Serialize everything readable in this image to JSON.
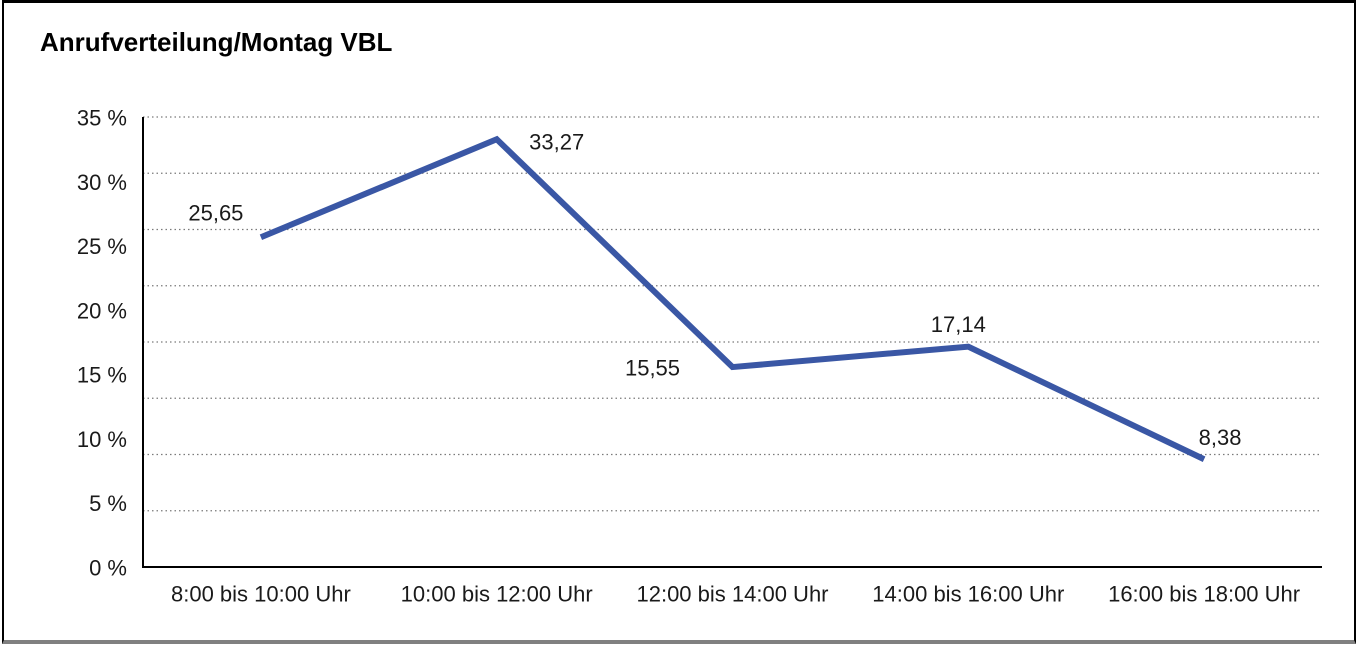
{
  "chart_data": {
    "type": "line",
    "title": "Anrufverteilung/Montag VBL",
    "categories": [
      "8:00 bis 10:00 Uhr",
      "10:00 bis 12:00 Uhr",
      "12:00 bis 14:00 Uhr",
      "14:00 bis 16:00 Uhr",
      "16:00 bis 18:00 Uhr"
    ],
    "values": [
      25.65,
      33.27,
      15.55,
      17.14,
      8.38
    ],
    "value_labels": [
      "25,65",
      "33,27",
      "15,55",
      "17,14",
      "8,38"
    ],
    "ytick_labels": [
      "35 %",
      "30 %",
      "25 %",
      "20 %",
      "15 %",
      "10 %",
      "5 %",
      "0 %"
    ],
    "ylim": [
      0,
      35
    ],
    "ylabel": "",
    "xlabel": "",
    "grid": "horizontal-dotted",
    "legend": "none",
    "line_color": "#3A57A5",
    "axis_color": "#000000",
    "gridline_color": "#7a7a7a",
    "text_color": "#1a1a1a"
  }
}
